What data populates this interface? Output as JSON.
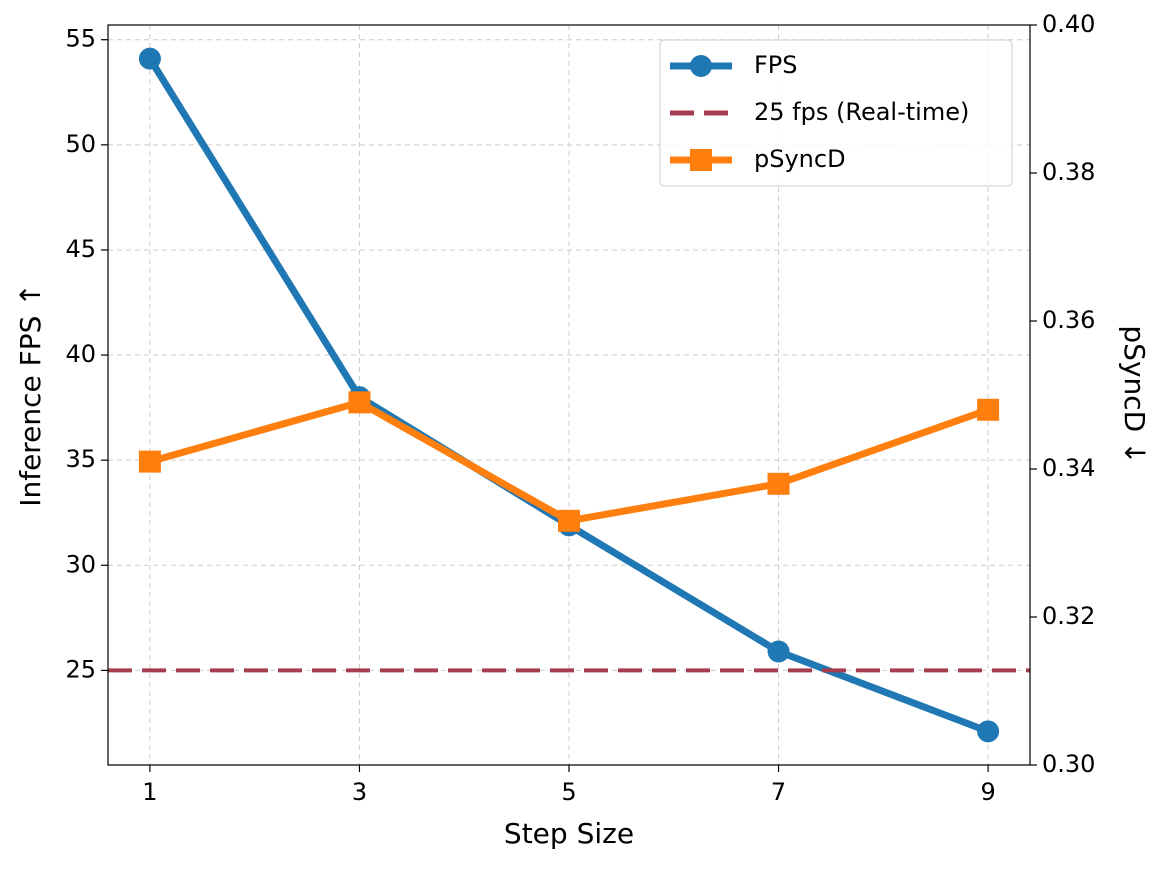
{
  "chart_data": {
    "type": "line",
    "xlabel": "Step Size",
    "ylabel": "Inference FPS ↑",
    "y2label": "pSyncD ↓",
    "x": [
      1,
      3,
      5,
      7,
      9
    ],
    "xlim": [
      0.6,
      9.4
    ],
    "xticks": [
      1,
      3,
      5,
      7,
      9
    ],
    "ylim": [
      20.5,
      55.7
    ],
    "yticks": [
      25,
      30,
      35,
      40,
      45,
      50,
      55
    ],
    "y2lim": [
      0.3,
      0.4
    ],
    "y2ticks": [
      {
        "value": 0.3,
        "label": "0.30"
      },
      0.32,
      0.34,
      0.36,
      0.38,
      {
        "value": 0.4,
        "label": "0.40"
      }
    ],
    "grid": true,
    "legend": "upper right",
    "series": [
      {
        "name": "FPS",
        "color": "#1f77b4",
        "marker": "circle",
        "values": [
          54.1,
          38.0,
          31.9,
          25.9,
          22.1
        ]
      },
      {
        "name": "pSyncD",
        "color": "#ff7f0e",
        "marker": "square",
        "axis": "y2",
        "values": [
          0.341,
          0.349,
          0.333,
          0.338,
          0.348
        ]
      }
    ],
    "hlines": [
      {
        "name": "25 fps (Real-time)",
        "value": 25,
        "color": "#a63d4f",
        "style": "dashed"
      }
    ]
  }
}
